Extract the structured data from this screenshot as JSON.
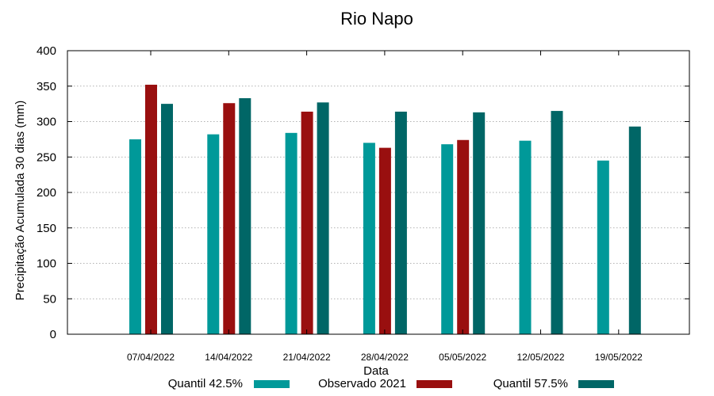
{
  "chart_data": {
    "type": "bar",
    "title": "Rio Napo",
    "xlabel": "Data",
    "ylabel": "Precipitação Acumulada 30 dias (mm)",
    "ylim": [
      0,
      400
    ],
    "yticks": [
      0,
      50,
      100,
      150,
      200,
      250,
      300,
      350,
      400
    ],
    "grid": true,
    "legend_position": "bottom",
    "categories": [
      "07/04/2022",
      "14/04/2022",
      "21/04/2022",
      "28/04/2022",
      "05/05/2022",
      "12/05/2022",
      "19/05/2022"
    ],
    "series": [
      {
        "name": "Quantil 42.5%",
        "color": "#009999",
        "values": [
          275,
          282,
          284,
          270,
          268,
          273,
          245
        ]
      },
      {
        "name": "Observado 2021",
        "color": "#990f0f",
        "values": [
          352,
          326,
          314,
          263,
          274,
          null,
          null
        ]
      },
      {
        "name": "Quantil 57.5%",
        "color": "#006666",
        "values": [
          325,
          333,
          327,
          314,
          313,
          315,
          293
        ]
      }
    ]
  }
}
